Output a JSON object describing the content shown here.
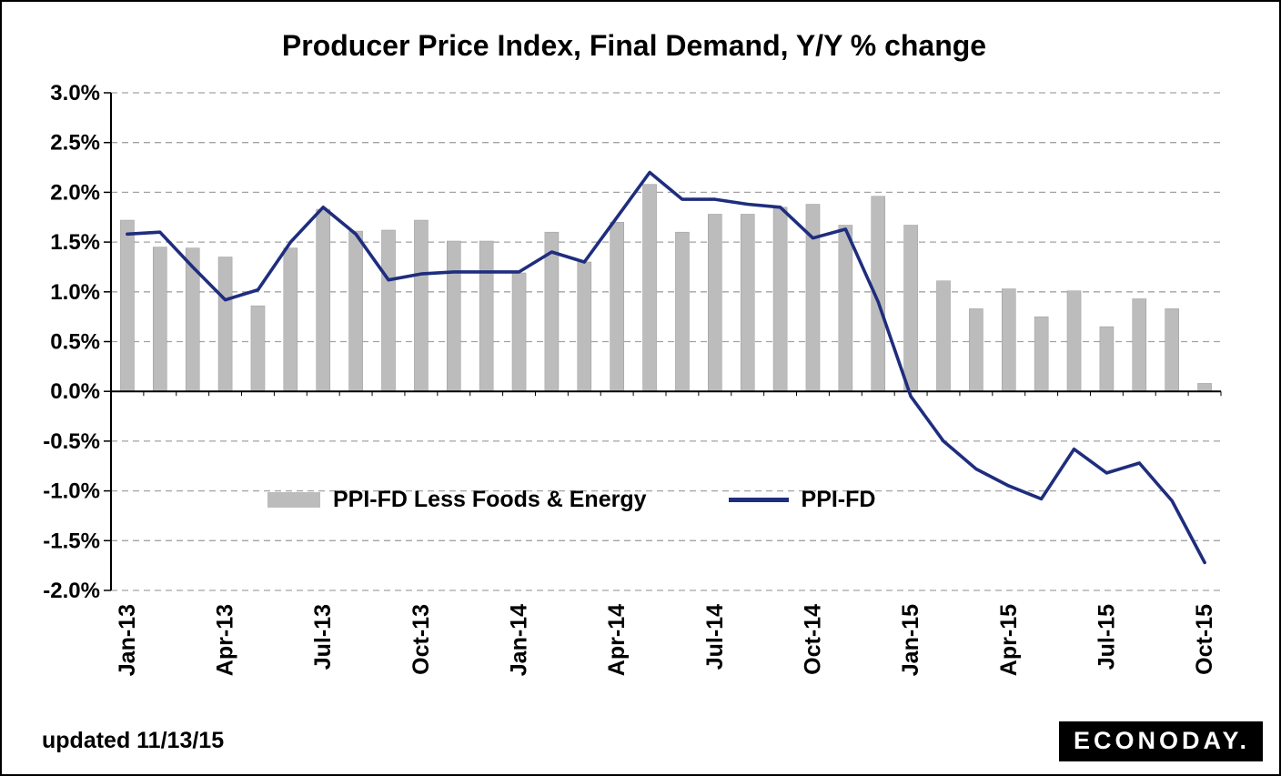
{
  "page": {
    "title_text": "Producer Price Index, Final Demand, Y/Y % change"
  },
  "legend": {
    "bar_label": "PPI-FD Less Foods & Energy",
    "line_label": "PPI-FD"
  },
  "footer": {
    "updated_text": "updated 11/13/15",
    "logo_text": "ECONODAY."
  },
  "colors": {
    "bar": "#bcbcbc",
    "bar_outline": "#9a9a9a",
    "line": "#1f2d7e",
    "grid": "#a3a3a3",
    "axis": "#000000",
    "background": "#ffffff"
  },
  "chart_data": {
    "type": "combo",
    "title": "Producer Price Index, Final Demand, Y/Y % change",
    "xlabel": "",
    "ylabel": "Y/Y % change",
    "ylim": [
      -2.0,
      3.0
    ],
    "y_tick_step": 0.5,
    "y_tick_format": "0.0%",
    "grid": "dashed-horizontal",
    "legend_position": "inside-lower-left",
    "x_tick_interval": 3,
    "x_tick_labels_shown": [
      "Jan-13",
      "Apr-13",
      "Jul-13",
      "Oct-13",
      "Jan-14",
      "Apr-14",
      "Jul-14",
      "Oct-14",
      "Jan-15",
      "Apr-15",
      "Jul-15",
      "Oct-15"
    ],
    "categories": [
      "Jan-13",
      "Feb-13",
      "Mar-13",
      "Apr-13",
      "May-13",
      "Jun-13",
      "Jul-13",
      "Aug-13",
      "Sep-13",
      "Oct-13",
      "Nov-13",
      "Dec-13",
      "Jan-14",
      "Feb-14",
      "Mar-14",
      "Apr-14",
      "May-14",
      "Jun-14",
      "Jul-14",
      "Aug-14",
      "Sep-14",
      "Oct-14",
      "Nov-14",
      "Dec-14",
      "Jan-15",
      "Feb-15",
      "Mar-15",
      "Apr-15",
      "May-15",
      "Jun-15",
      "Jul-15",
      "Aug-15",
      "Sep-15",
      "Oct-15"
    ],
    "series": [
      {
        "name": "PPI-FD Less Foods & Energy",
        "render": "bar",
        "values": [
          1.72,
          1.45,
          1.44,
          1.35,
          0.86,
          1.44,
          1.83,
          1.61,
          1.62,
          1.72,
          1.51,
          1.51,
          1.19,
          1.6,
          1.3,
          1.7,
          2.08,
          1.6,
          1.78,
          1.78,
          1.85,
          1.88,
          1.67,
          1.96,
          1.67,
          1.11,
          0.83,
          1.03,
          0.75,
          1.01,
          0.65,
          0.93,
          0.83,
          0.08
        ]
      },
      {
        "name": "PPI-FD",
        "render": "line",
        "values": [
          1.58,
          1.6,
          1.25,
          0.92,
          1.02,
          1.5,
          1.85,
          1.58,
          1.12,
          1.18,
          1.2,
          1.2,
          1.2,
          1.4,
          1.3,
          1.75,
          2.2,
          1.93,
          1.93,
          1.88,
          1.85,
          1.54,
          1.63,
          0.9,
          -0.05,
          -0.5,
          -0.78,
          -0.95,
          -1.08,
          -0.58,
          -0.82,
          -0.72,
          -1.1,
          -1.72
        ]
      }
    ]
  }
}
